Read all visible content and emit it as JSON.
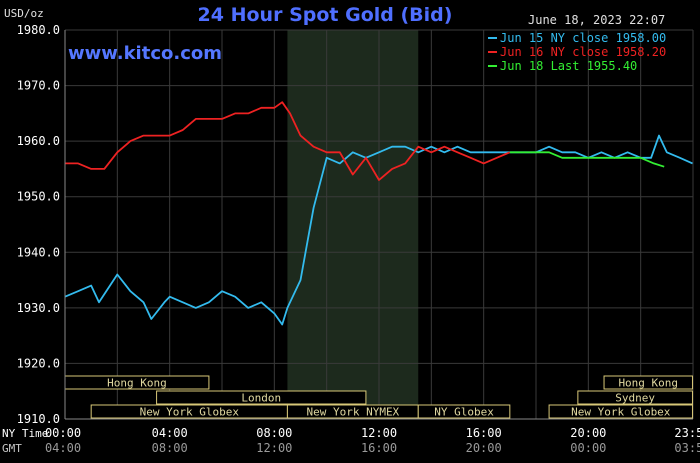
{
  "chart_data": {
    "type": "line",
    "title": "24 Hour Spot Gold (Bid)",
    "unit_label": "USD/oz",
    "brand": "www.kitco.com",
    "timestamp": "June 18, 2023 22:07",
    "ylim": [
      1910,
      1980
    ],
    "yticks": [
      "1980.0",
      "1970.0",
      "1960.0",
      "1950.0",
      "1940.0",
      "1930.0",
      "1920.0",
      "1910.0"
    ],
    "ytick_values": [
      1980,
      1970,
      1960,
      1950,
      1940,
      1930,
      1920,
      1910
    ],
    "xlim": [
      0,
      24
    ],
    "ny_time_label": "NY Time",
    "gmt_label": "GMT",
    "xticks_ny": [
      "00:00",
      "04:00",
      "08:00",
      "12:00",
      "16:00",
      "20:00",
      "23:59"
    ],
    "xticks_gmt": [
      "04:00",
      "08:00",
      "12:00",
      "16:00",
      "20:00",
      "00:00",
      "03:59"
    ],
    "xtick_hours": [
      0,
      4,
      8,
      12,
      16,
      20,
      23.98
    ],
    "shaded_hours": [
      8.5,
      13.5
    ],
    "series": [
      {
        "name": "Jun 15 NY close 1958.00",
        "color": "#33bbee",
        "x": [
          0,
          0.5,
          1,
          1.3,
          2,
          2.5,
          3,
          3.3,
          3.8,
          4,
          4.5,
          5,
          5.5,
          6,
          6.5,
          7,
          7.5,
          8,
          8.3,
          8.5,
          9,
          9.5,
          10,
          10.5,
          11,
          11.5,
          12,
          12.5,
          13,
          13.5,
          14,
          14.5,
          15,
          15.5,
          16,
          16.5,
          17,
          17.5,
          18,
          18.5,
          19,
          19.5,
          20,
          20.5,
          21,
          21.5,
          22,
          22.4,
          22.7,
          23,
          23.5,
          23.98
        ],
        "y": [
          1932,
          1933,
          1934,
          1931,
          1936,
          1933,
          1931,
          1928,
          1931,
          1932,
          1931,
          1930,
          1931,
          1933,
          1932,
          1930,
          1931,
          1929,
          1927,
          1930,
          1935,
          1948,
          1957,
          1956,
          1958,
          1957,
          1958,
          1959,
          1959,
          1958,
          1959,
          1958,
          1959,
          1958,
          1958,
          1958,
          1958,
          1958,
          1958,
          1959,
          1958,
          1958,
          1957,
          1958,
          1957,
          1958,
          1957,
          1957,
          1961,
          1958,
          1957,
          1956
        ]
      },
      {
        "name": "Jun 16 NY close 1958.20",
        "color": "#ee2222",
        "x": [
          0,
          0.5,
          1,
          1.5,
          2,
          2.5,
          3,
          3.5,
          4,
          4.5,
          5,
          5.5,
          6,
          6.5,
          7,
          7.5,
          8,
          8.3,
          8.6,
          9,
          9.5,
          10,
          10.5,
          11,
          11.5,
          12,
          12.5,
          13,
          13.5,
          14,
          14.5,
          15,
          15.5,
          16,
          16.5,
          17
        ],
        "y": [
          1956,
          1956,
          1955,
          1955,
          1958,
          1960,
          1961,
          1961,
          1961,
          1962,
          1964,
          1964,
          1964,
          1965,
          1965,
          1966,
          1966,
          1967,
          1965,
          1961,
          1959,
          1958,
          1958,
          1954,
          1957,
          1953,
          1955,
          1956,
          1959,
          1958,
          1959,
          1958,
          1957,
          1956,
          1957,
          1958
        ]
      },
      {
        "name": "Jun 18 Last 1955.40",
        "color": "#33ee33",
        "x": [
          17,
          17.5,
          18,
          18.5,
          19,
          19.5,
          20,
          20.5,
          21,
          21.5,
          22,
          22.5,
          22.9
        ],
        "y": [
          1958,
          1958,
          1958,
          1958,
          1957,
          1957,
          1957,
          1957,
          1957,
          1957,
          1957,
          1956,
          1955.4
        ]
      }
    ],
    "sessions": [
      {
        "label": "Hong Kong",
        "start": 0,
        "end": 5.5,
        "row": 0
      },
      {
        "label": "Hong Kong",
        "start": 20.6,
        "end": 23.98,
        "row": 0
      },
      {
        "label": "London",
        "start": 3.5,
        "end": 11.5,
        "row": 1
      },
      {
        "label": "Sydney",
        "start": 19.6,
        "end": 23.98,
        "row": 1
      },
      {
        "label": "New York Globex",
        "start": 1,
        "end": 8.5,
        "row": 2
      },
      {
        "label": "New York NYMEX",
        "start": 8.5,
        "end": 13.5,
        "row": 2
      },
      {
        "label": "NY Globex",
        "start": 13.5,
        "end": 17,
        "row": 2
      },
      {
        "label": "New York Globex",
        "start": 18.5,
        "end": 23.98,
        "row": 2
      }
    ]
  }
}
